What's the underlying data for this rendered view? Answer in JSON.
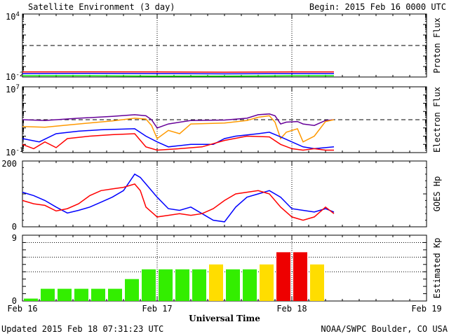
{
  "header": {
    "title": "Satellite Environment (3 day)",
    "begin": "Begin:  2015 Feb 16 0000 UTC"
  },
  "footer": {
    "updated": "Updated 2015 Feb 18 07:31:23 UTC",
    "source": "NOAA/SWPC Boulder, CO USA"
  },
  "x_axis": {
    "label": "Universal Time",
    "ticks": [
      "Feb 16",
      "Feb 17",
      "Feb 18",
      "Feb 19"
    ]
  },
  "colors": {
    "red": "#ff0000",
    "blue": "#0000ff",
    "green": "#00ff00",
    "purple": "#660099",
    "orange": "#ff9900",
    "kp_green": "#33ee00",
    "kp_yellow": "#ffdd00",
    "kp_red": "#ee0000"
  },
  "chart_data": [
    {
      "type": "line",
      "ylabel": "Proton Flux",
      "yscale": "log",
      "ylim": [
        0.01,
        10000
      ],
      "ytick_labels": [
        {
          "base": "10",
          "exp": "4"
        },
        {
          "base": "10",
          "exp": "-2"
        }
      ],
      "threshold": 10,
      "xlim": [
        0,
        72
      ],
      "series": [
        {
          "color": "red",
          "x": [
            0,
            12,
            24,
            36,
            48,
            55.5
          ],
          "values": [
            0.03,
            0.031,
            0.03,
            0.029,
            0.03,
            0.03
          ]
        },
        {
          "color": "blue",
          "x": [
            0,
            12,
            24,
            36,
            48,
            55.5
          ],
          "values": [
            0.021,
            0.022,
            0.021,
            0.02,
            0.021,
            0.021
          ]
        },
        {
          "color": "green",
          "x": [
            0,
            12,
            24,
            36,
            48,
            55.5
          ],
          "values": [
            0.013,
            0.013,
            0.012,
            0.012,
            0.013,
            0.013
          ]
        }
      ]
    },
    {
      "type": "line",
      "ylabel": "Electron Flux",
      "yscale": "log",
      "ylim": [
        0.1,
        10000000
      ],
      "ytick_labels": [
        {
          "base": "10",
          "exp": "7"
        },
        {
          "base": "10",
          "exp": "-1"
        }
      ],
      "threshold": 1000,
      "xlim": [
        0,
        72
      ],
      "series": [
        {
          "color": "purple",
          "x": [
            0,
            4,
            10,
            16,
            20,
            22,
            23,
            24,
            26,
            30,
            36,
            40,
            42,
            44,
            45,
            46,
            47,
            49,
            50,
            52,
            54,
            55.5
          ],
          "values": [
            1000,
            800,
            1500,
            2500,
            4000,
            3000,
            1000,
            100,
            300,
            800,
            900,
            1500,
            4000,
            5000,
            3000,
            300,
            500,
            600,
            300,
            200,
            800,
            1000
          ]
        },
        {
          "color": "orange",
          "x": [
            0,
            4,
            10,
            16,
            20,
            22,
            23,
            24,
            26,
            28,
            30,
            36,
            40,
            42,
            44,
            45,
            46,
            47,
            49,
            50,
            52,
            54,
            55.5
          ],
          "values": [
            150,
            120,
            300,
            700,
            1500,
            1200,
            200,
            5,
            50,
            20,
            300,
            400,
            800,
            2000,
            3000,
            500,
            5,
            30,
            80,
            2,
            10,
            600,
            1000
          ]
        },
        {
          "color": "blue",
          "x": [
            0,
            3,
            6,
            10,
            14,
            20,
            22,
            24,
            26,
            30,
            34,
            36,
            38,
            42,
            44,
            46,
            48,
            50,
            52,
            54,
            55.5
          ],
          "values": [
            5,
            2,
            20,
            40,
            60,
            80,
            10,
            2,
            0.5,
            1,
            1,
            5,
            10,
            20,
            30,
            8,
            2,
            0.5,
            0.3,
            0.4,
            0.5
          ]
        },
        {
          "color": "red",
          "x": [
            0,
            2,
            4,
            6,
            8,
            12,
            16,
            20,
            22,
            24,
            28,
            32,
            36,
            40,
            44,
            46,
            48,
            50,
            52,
            54,
            55.5
          ],
          "values": [
            1,
            0.3,
            2,
            0.4,
            5,
            10,
            15,
            20,
            0.5,
            0.2,
            0.3,
            0.5,
            3,
            10,
            8,
            1,
            0.3,
            0.2,
            0.3,
            0.2,
            0.2
          ]
        }
      ]
    },
    {
      "type": "line",
      "ylabel": "GOES Hp",
      "ylim": [
        0,
        200
      ],
      "ytick_labels": [
        "200",
        "0"
      ],
      "xlim": [
        0,
        72
      ],
      "series": [
        {
          "color": "blue",
          "x": [
            0,
            2,
            4,
            6,
            8,
            10,
            12,
            14,
            16,
            18,
            20,
            21,
            22,
            24,
            26,
            28,
            30,
            32,
            34,
            36,
            38,
            40,
            42,
            44,
            46,
            48,
            50,
            52,
            54,
            55.5
          ],
          "values": [
            105,
            95,
            80,
            60,
            42,
            50,
            60,
            75,
            90,
            110,
            160,
            150,
            130,
            90,
            55,
            50,
            60,
            40,
            20,
            15,
            60,
            90,
            100,
            110,
            90,
            55,
            50,
            45,
            55,
            45
          ]
        },
        {
          "color": "red",
          "x": [
            0,
            2,
            4,
            6,
            8,
            10,
            12,
            14,
            16,
            18,
            20,
            21,
            22,
            24,
            26,
            28,
            30,
            32,
            34,
            36,
            38,
            40,
            42,
            44,
            46,
            48,
            50,
            52,
            54,
            55.5
          ],
          "values": [
            80,
            70,
            65,
            48,
            55,
            70,
            95,
            110,
            115,
            120,
            130,
            110,
            60,
            30,
            35,
            40,
            35,
            40,
            55,
            80,
            100,
            105,
            110,
            100,
            60,
            30,
            20,
            30,
            60,
            40
          ]
        }
      ]
    },
    {
      "type": "bar",
      "ylabel": "Estimated Kp",
      "ylim": [
        0,
        9
      ],
      "ytick_labels": [
        "9",
        "0"
      ],
      "dotted_levels": [
        4,
        6,
        8,
        9
      ],
      "bar_width_hours": 3,
      "xlim": [
        0,
        72
      ],
      "values": [
        0.33,
        1.67,
        1.67,
        1.67,
        1.67,
        1.67,
        3,
        4.33,
        4.33,
        4.33,
        4.33,
        5,
        4.33,
        4.33,
        5,
        6.67,
        6.67,
        5
      ],
      "colors": [
        "kp_green",
        "kp_green",
        "kp_green",
        "kp_green",
        "kp_green",
        "kp_green",
        "kp_green",
        "kp_green",
        "kp_green",
        "kp_green",
        "kp_green",
        "kp_yellow",
        "kp_green",
        "kp_green",
        "kp_yellow",
        "kp_red",
        "kp_red",
        "kp_yellow"
      ]
    }
  ]
}
